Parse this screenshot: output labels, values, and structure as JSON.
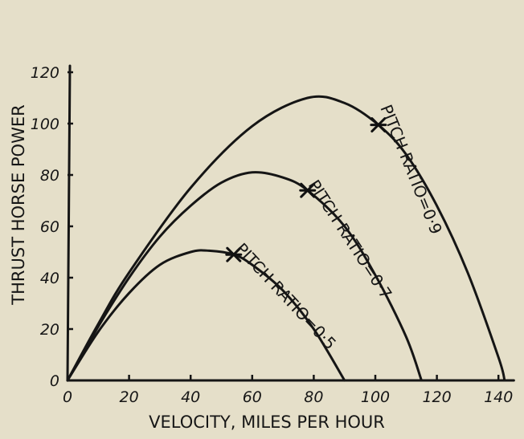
{
  "chart_data": {
    "type": "line",
    "title": "",
    "xlabel": "VELOCITY, MILES PER HOUR",
    "ylabel": "THRUST HORSE POWER",
    "xlim": [
      0,
      145
    ],
    "ylim": [
      0,
      125
    ],
    "x_ticks": [
      "0",
      "20",
      "40",
      "60",
      "80",
      "100",
      "120",
      "140"
    ],
    "y_ticks": [
      "0",
      "20",
      "40",
      "60",
      "80",
      "100",
      "120"
    ],
    "grid": false,
    "series": [
      {
        "name": "PITCH RATIO=0·5",
        "x": [
          0,
          10,
          20,
          30,
          40,
          46,
          54,
          60,
          70,
          80,
          90
        ],
        "y": [
          0,
          19,
          34,
          45,
          50,
          50.5,
          49,
          45,
          35,
          20,
          0
        ],
        "marker_point": [
          54,
          49
        ]
      },
      {
        "name": "PITCH RATIO=0·7",
        "x": [
          0,
          10,
          20,
          30,
          40,
          50,
          60,
          70,
          78,
          90,
          100,
          110,
          115
        ],
        "y": [
          0,
          21,
          40,
          56,
          68,
          77,
          81,
          79,
          74,
          60,
          41,
          17,
          0
        ],
        "marker_point": [
          78,
          74
        ]
      },
      {
        "name": "PITCH RATIO=0·9",
        "x": [
          0,
          10,
          20,
          40,
          60,
          78,
          90,
          101,
          110,
          120,
          130,
          140,
          142
        ],
        "y": [
          0,
          22,
          42,
          75,
          99,
          110,
          108,
          99.5,
          88,
          68,
          42,
          9,
          0
        ],
        "marker_point": [
          101,
          99.5
        ]
      }
    ]
  }
}
